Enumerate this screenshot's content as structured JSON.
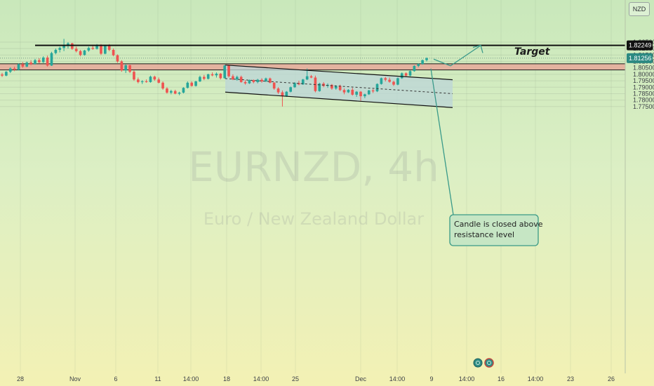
{
  "currency_button": "NZD",
  "watermark": {
    "symbol": "EURNZD, 4h",
    "subtitle": "Euro / New Zealand Dollar"
  },
  "annotations": {
    "target_label": "Target",
    "callout_lines": [
      "Candle is closed above",
      "resistance level"
    ]
  },
  "colors": {
    "up_candle": "#26a69a",
    "down_candle": "#ef5350",
    "resistance_zone": "#e8a99a",
    "channel_fill": "#bcd6d8",
    "callout_border": "#3a9a86",
    "arrow": "#3a9a8a"
  },
  "chart_data": {
    "type": "candlestick",
    "symbol": "EURNZD",
    "timeframe": "4h",
    "price_axis": {
      "ticks": [
        "1.82500",
        "1.82000",
        "1.81500",
        "1.81000",
        "1.80500",
        "1.80000",
        "1.79500",
        "1.79000",
        "1.78500",
        "1.78000",
        "1.77500"
      ],
      "range": [
        1.7735,
        1.83
      ],
      "labels": {
        "target_price": "1.82249",
        "current_price": "1.81256"
      }
    },
    "x_axis": {
      "ticks": [
        "28",
        "Nov",
        "6",
        "11",
        "14:00",
        "18",
        "14:00",
        "25",
        "Dec",
        "14:00",
        "9",
        "14:00",
        "16",
        "14:00",
        "23",
        "26"
      ]
    },
    "levels": {
      "target": 1.82249,
      "current": 1.81256,
      "resistance_zone": [
        1.8034,
        1.8082
      ]
    },
    "channel": {
      "upper_line": [
        [
          1.8072
        ],
        [
          1.7958
        ]
      ],
      "lower_line": [
        [
          1.7862
        ],
        [
          1.7742
        ]
      ]
    },
    "candles": [
      [
        1.7998,
        1.8012,
        1.798,
        1.799
      ],
      [
        1.799,
        1.8025,
        1.7985,
        1.802
      ],
      [
        1.802,
        1.8055,
        1.801,
        1.8045
      ],
      [
        1.8045,
        1.806,
        1.8025,
        1.8035
      ],
      [
        1.8035,
        1.8085,
        1.803,
        1.8078
      ],
      [
        1.8078,
        1.8095,
        1.805,
        1.806
      ],
      [
        1.806,
        1.81,
        1.8055,
        1.8092
      ],
      [
        1.8092,
        1.811,
        1.807,
        1.808
      ],
      [
        1.808,
        1.812,
        1.8075,
        1.811
      ],
      [
        1.811,
        1.8125,
        1.8085,
        1.8095
      ],
      [
        1.8095,
        1.814,
        1.8088,
        1.813
      ],
      [
        1.813,
        1.8145,
        1.806,
        1.8068
      ],
      [
        1.8068,
        1.8175,
        1.8065,
        1.8165
      ],
      [
        1.8165,
        1.82,
        1.8155,
        1.819
      ],
      [
        1.819,
        1.8215,
        1.817,
        1.8205
      ],
      [
        1.8205,
        1.8275,
        1.818,
        1.8222
      ],
      [
        1.8222,
        1.825,
        1.82,
        1.824
      ],
      [
        1.824,
        1.8245,
        1.819,
        1.8198
      ],
      [
        1.8198,
        1.8215,
        1.817,
        1.818
      ],
      [
        1.818,
        1.819,
        1.814,
        1.815
      ],
      [
        1.815,
        1.819,
        1.8145,
        1.8185
      ],
      [
        1.8185,
        1.8215,
        1.8175,
        1.8205
      ],
      [
        1.8205,
        1.823,
        1.819,
        1.8198
      ],
      [
        1.8198,
        1.8235,
        1.8192,
        1.8225
      ],
      [
        1.8225,
        1.8235,
        1.815,
        1.816
      ],
      [
        1.816,
        1.823,
        1.8155,
        1.8222
      ],
      [
        1.8222,
        1.8235,
        1.818,
        1.819
      ],
      [
        1.819,
        1.82,
        1.814,
        1.8148
      ],
      [
        1.8148,
        1.8155,
        1.809,
        1.81
      ],
      [
        1.81,
        1.811,
        1.802,
        1.803
      ],
      [
        1.803,
        1.808,
        1.801,
        1.807
      ],
      [
        1.807,
        1.8075,
        1.801,
        1.802
      ],
      [
        1.802,
        1.803,
        1.795,
        1.796
      ],
      [
        1.796,
        1.7975,
        1.793,
        1.794
      ],
      [
        1.794,
        1.7955,
        1.7925,
        1.7945
      ],
      [
        1.7945,
        1.796,
        1.7935,
        1.794
      ],
      [
        1.794,
        1.799,
        1.7935,
        1.7982
      ],
      [
        1.7982,
        1.799,
        1.795,
        1.796
      ],
      [
        1.796,
        1.7975,
        1.793,
        1.7935
      ],
      [
        1.7935,
        1.7945,
        1.788,
        1.789
      ],
      [
        1.789,
        1.79,
        1.785,
        1.7858
      ],
      [
        1.7858,
        1.788,
        1.7845,
        1.787
      ],
      [
        1.787,
        1.788,
        1.7845,
        1.785
      ],
      [
        1.785,
        1.7865,
        1.7838,
        1.7858
      ],
      [
        1.7858,
        1.79,
        1.7852,
        1.7895
      ],
      [
        1.7895,
        1.7945,
        1.789,
        1.7935
      ],
      [
        1.7935,
        1.7945,
        1.7905,
        1.791
      ],
      [
        1.791,
        1.795,
        1.7905,
        1.7945
      ],
      [
        1.7945,
        1.799,
        1.794,
        1.798
      ],
      [
        1.798,
        1.7995,
        1.7955,
        1.7965
      ],
      [
        1.7965,
        1.8005,
        1.796,
        1.8
      ],
      [
        1.8,
        1.8015,
        1.7985,
        1.7992
      ],
      [
        1.7992,
        1.8015,
        1.7975,
        1.8005
      ],
      [
        1.8005,
        1.801,
        1.796,
        1.797
      ],
      [
        1.797,
        1.8075,
        1.7965,
        1.8068
      ],
      [
        1.8068,
        1.8072,
        1.7975,
        1.7985
      ],
      [
        1.7985,
        1.8,
        1.7955,
        1.796
      ],
      [
        1.796,
        1.799,
        1.795,
        1.798
      ],
      [
        1.798,
        1.799,
        1.7935,
        1.794
      ],
      [
        1.794,
        1.7955,
        1.792,
        1.793
      ],
      [
        1.793,
        1.796,
        1.7925,
        1.7955
      ],
      [
        1.7955,
        1.796,
        1.793,
        1.794
      ],
      [
        1.794,
        1.7965,
        1.793,
        1.7958
      ],
      [
        1.7958,
        1.797,
        1.7935,
        1.7945
      ],
      [
        1.7945,
        1.7975,
        1.794,
        1.7968
      ],
      [
        1.7968,
        1.7975,
        1.793,
        1.7935
      ],
      [
        1.7935,
        1.794,
        1.788,
        1.789
      ],
      [
        1.789,
        1.79,
        1.7848,
        1.786
      ],
      [
        1.786,
        1.7875,
        1.775,
        1.783
      ],
      [
        1.783,
        1.787,
        1.7825,
        1.7865
      ],
      [
        1.7865,
        1.7905,
        1.786,
        1.79
      ],
      [
        1.79,
        1.794,
        1.7895,
        1.7932
      ],
      [
        1.7932,
        1.795,
        1.7915,
        1.7922
      ],
      [
        1.7922,
        1.7965,
        1.7918,
        1.796
      ],
      [
        1.796,
        1.8045,
        1.7955,
        1.7985
      ],
      [
        1.7985,
        1.7995,
        1.797,
        1.7975
      ],
      [
        1.7975,
        1.799,
        1.786,
        1.787
      ],
      [
        1.787,
        1.7935,
        1.7865,
        1.7928
      ],
      [
        1.7928,
        1.794,
        1.79,
        1.791
      ],
      [
        1.791,
        1.793,
        1.7895,
        1.7918
      ],
      [
        1.7918,
        1.7925,
        1.788,
        1.789
      ],
      [
        1.789,
        1.7915,
        1.788,
        1.791
      ],
      [
        1.791,
        1.792,
        1.787,
        1.7878
      ],
      [
        1.7878,
        1.789,
        1.7845,
        1.786
      ],
      [
        1.786,
        1.7885,
        1.7855,
        1.788
      ],
      [
        1.788,
        1.7895,
        1.7835,
        1.7842
      ],
      [
        1.7842,
        1.787,
        1.7825,
        1.7865
      ],
      [
        1.7865,
        1.787,
        1.7795,
        1.783
      ],
      [
        1.783,
        1.785,
        1.7815,
        1.7845
      ],
      [
        1.7845,
        1.788,
        1.784,
        1.7875
      ],
      [
        1.7875,
        1.7885,
        1.7855,
        1.7868
      ],
      [
        1.7868,
        1.793,
        1.7862,
        1.7925
      ],
      [
        1.7925,
        1.7975,
        1.792,
        1.797
      ],
      [
        1.797,
        1.798,
        1.7945,
        1.7958
      ],
      [
        1.7958,
        1.7975,
        1.7935,
        1.7942
      ],
      [
        1.7942,
        1.795,
        1.791,
        1.792
      ],
      [
        1.792,
        1.7975,
        1.7915,
        1.797
      ],
      [
        1.797,
        1.8015,
        1.7965,
        1.8008
      ],
      [
        1.8008,
        1.8015,
        1.7985,
        1.799
      ],
      [
        1.799,
        1.803,
        1.7985,
        1.8025
      ],
      [
        1.8025,
        1.807,
        1.802,
        1.8065
      ],
      [
        1.8065,
        1.8085,
        1.8055,
        1.808
      ],
      [
        1.808,
        1.8115,
        1.8075,
        1.811
      ],
      [
        1.811,
        1.8132,
        1.81,
        1.8125
      ]
    ]
  }
}
